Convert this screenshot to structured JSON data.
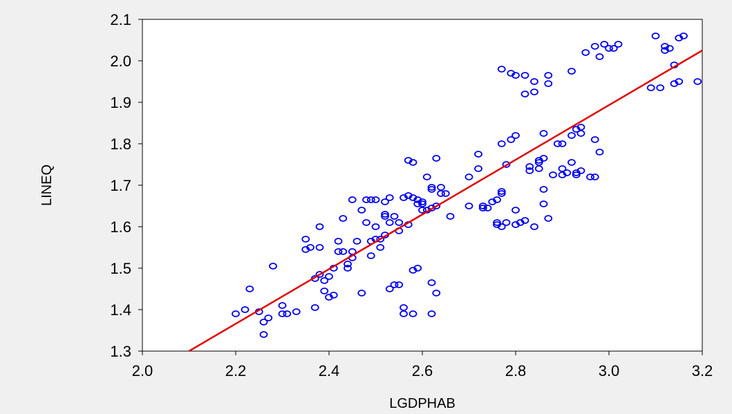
{
  "chart_data": {
    "type": "scatter",
    "title": "",
    "xlabel": "LGDPHAB",
    "ylabel": "LINEQ",
    "xlim": [
      2.0,
      3.2
    ],
    "ylim": [
      1.3,
      2.1
    ],
    "x_ticks": [
      "2.0",
      "2.2",
      "2.4",
      "2.6",
      "2.8",
      "3.0",
      "3.2"
    ],
    "y_ticks": [
      "1.3",
      "1.4",
      "1.5",
      "1.6",
      "1.7",
      "1.8",
      "1.9",
      "2.0",
      "2.1"
    ],
    "grid": false,
    "colors": {
      "points": "#0000ee",
      "fit_line": "#e00000",
      "background": "#f0f0f0",
      "plot_area": "#ffffff"
    },
    "fit_line": {
      "type": "linear",
      "x": [
        2.1,
        3.2
      ],
      "y": [
        1.3,
        2.025
      ]
    },
    "points": [
      [
        2.2,
        1.39
      ],
      [
        2.22,
        1.4
      ],
      [
        2.23,
        1.45
      ],
      [
        2.25,
        1.395
      ],
      [
        2.26,
        1.37
      ],
      [
        2.26,
        1.34
      ],
      [
        2.27,
        1.38
      ],
      [
        2.28,
        1.505
      ],
      [
        2.3,
        1.39
      ],
      [
        2.3,
        1.41
      ],
      [
        2.31,
        1.39
      ],
      [
        2.33,
        1.395
      ],
      [
        2.35,
        1.57
      ],
      [
        2.35,
        1.545
      ],
      [
        2.36,
        1.55
      ],
      [
        2.37,
        1.475
      ],
      [
        2.37,
        1.405
      ],
      [
        2.38,
        1.485
      ],
      [
        2.38,
        1.55
      ],
      [
        2.38,
        1.6
      ],
      [
        2.39,
        1.445
      ],
      [
        2.39,
        1.47
      ],
      [
        2.4,
        1.43
      ],
      [
        2.4,
        1.48
      ],
      [
        2.41,
        1.5
      ],
      [
        2.41,
        1.435
      ],
      [
        2.42,
        1.565
      ],
      [
        2.42,
        1.54
      ],
      [
        2.43,
        1.62
      ],
      [
        2.43,
        1.54
      ],
      [
        2.44,
        1.5
      ],
      [
        2.44,
        1.51
      ],
      [
        2.45,
        1.665
      ],
      [
        2.45,
        1.54
      ],
      [
        2.45,
        1.525
      ],
      [
        2.46,
        1.565
      ],
      [
        2.47,
        1.64
      ],
      [
        2.47,
        1.44
      ],
      [
        2.48,
        1.665
      ],
      [
        2.48,
        1.61
      ],
      [
        2.49,
        1.665
      ],
      [
        2.49,
        1.565
      ],
      [
        2.49,
        1.53
      ],
      [
        2.5,
        1.665
      ],
      [
        2.5,
        1.6
      ],
      [
        2.5,
        1.57
      ],
      [
        2.51,
        1.57
      ],
      [
        2.51,
        1.55
      ],
      [
        2.52,
        1.625
      ],
      [
        2.52,
        1.66
      ],
      [
        2.52,
        1.58
      ],
      [
        2.52,
        1.63
      ],
      [
        2.53,
        1.67
      ],
      [
        2.53,
        1.61
      ],
      [
        2.53,
        1.45
      ],
      [
        2.54,
        1.46
      ],
      [
        2.54,
        1.625
      ],
      [
        2.55,
        1.46
      ],
      [
        2.55,
        1.59
      ],
      [
        2.55,
        1.61
      ],
      [
        2.56,
        1.67
      ],
      [
        2.56,
        1.405
      ],
      [
        2.56,
        1.39
      ],
      [
        2.57,
        1.675
      ],
      [
        2.57,
        1.605
      ],
      [
        2.57,
        1.76
      ],
      [
        2.58,
        1.39
      ],
      [
        2.58,
        1.495
      ],
      [
        2.58,
        1.755
      ],
      [
        2.58,
        1.67
      ],
      [
        2.59,
        1.665
      ],
      [
        2.59,
        1.655
      ],
      [
        2.59,
        1.5
      ],
      [
        2.6,
        1.64
      ],
      [
        2.6,
        1.66
      ],
      [
        2.6,
        1.655
      ],
      [
        2.61,
        1.72
      ],
      [
        2.61,
        1.64
      ],
      [
        2.62,
        1.645
      ],
      [
        2.62,
        1.69
      ],
      [
        2.62,
        1.695
      ],
      [
        2.62,
        1.465
      ],
      [
        2.62,
        1.39
      ],
      [
        2.63,
        1.765
      ],
      [
        2.63,
        1.65
      ],
      [
        2.63,
        1.44
      ],
      [
        2.64,
        1.68
      ],
      [
        2.64,
        1.695
      ],
      [
        2.65,
        1.68
      ],
      [
        2.66,
        1.625
      ],
      [
        2.7,
        1.65
      ],
      [
        2.7,
        1.72
      ],
      [
        2.72,
        1.775
      ],
      [
        2.72,
        1.74
      ],
      [
        2.73,
        1.645
      ],
      [
        2.73,
        1.65
      ],
      [
        2.74,
        1.645
      ],
      [
        2.75,
        1.66
      ],
      [
        2.76,
        1.665
      ],
      [
        2.76,
        1.605
      ],
      [
        2.76,
        1.61
      ],
      [
        2.77,
        1.68
      ],
      [
        2.77,
        1.685
      ],
      [
        2.77,
        1.6
      ],
      [
        2.77,
        1.98
      ],
      [
        2.77,
        1.8
      ],
      [
        2.78,
        1.61
      ],
      [
        2.78,
        1.75
      ],
      [
        2.79,
        1.97
      ],
      [
        2.79,
        1.81
      ],
      [
        2.8,
        1.965
      ],
      [
        2.8,
        1.64
      ],
      [
        2.8,
        1.605
      ],
      [
        2.8,
        1.82
      ],
      [
        2.81,
        1.61
      ],
      [
        2.82,
        1.92
      ],
      [
        2.82,
        1.615
      ],
      [
        2.82,
        1.965
      ],
      [
        2.83,
        1.745
      ],
      [
        2.83,
        1.735
      ],
      [
        2.84,
        1.95
      ],
      [
        2.84,
        1.925
      ],
      [
        2.84,
        1.6
      ],
      [
        2.85,
        1.755
      ],
      [
        2.85,
        1.74
      ],
      [
        2.85,
        1.76
      ],
      [
        2.86,
        1.69
      ],
      [
        2.86,
        1.655
      ],
      [
        2.86,
        1.765
      ],
      [
        2.86,
        1.825
      ],
      [
        2.87,
        1.965
      ],
      [
        2.87,
        1.62
      ],
      [
        2.87,
        1.945
      ],
      [
        2.88,
        1.725
      ],
      [
        2.89,
        1.8
      ],
      [
        2.9,
        1.8
      ],
      [
        2.9,
        1.725
      ],
      [
        2.9,
        1.74
      ],
      [
        2.91,
        1.73
      ],
      [
        2.92,
        1.755
      ],
      [
        2.92,
        1.82
      ],
      [
        2.92,
        1.975
      ],
      [
        2.93,
        1.835
      ],
      [
        2.93,
        1.725
      ],
      [
        2.93,
        1.73
      ],
      [
        2.94,
        1.84
      ],
      [
        2.94,
        1.825
      ],
      [
        2.94,
        1.735
      ],
      [
        2.95,
        2.02
      ],
      [
        2.96,
        1.72
      ],
      [
        2.97,
        1.72
      ],
      [
        2.97,
        1.81
      ],
      [
        2.97,
        2.035
      ],
      [
        2.98,
        2.01
      ],
      [
        2.98,
        1.78
      ],
      [
        2.99,
        2.04
      ],
      [
        3.0,
        2.03
      ],
      [
        3.01,
        2.03
      ],
      [
        3.02,
        2.04
      ],
      [
        3.09,
        1.935
      ],
      [
        3.1,
        2.06
      ],
      [
        3.11,
        1.935
      ],
      [
        3.12,
        2.025
      ],
      [
        3.12,
        2.035
      ],
      [
        3.13,
        2.03
      ],
      [
        3.14,
        1.945
      ],
      [
        3.14,
        1.99
      ],
      [
        3.15,
        2.055
      ],
      [
        3.15,
        1.95
      ],
      [
        3.16,
        2.06
      ],
      [
        3.19,
        1.95
      ]
    ]
  }
}
